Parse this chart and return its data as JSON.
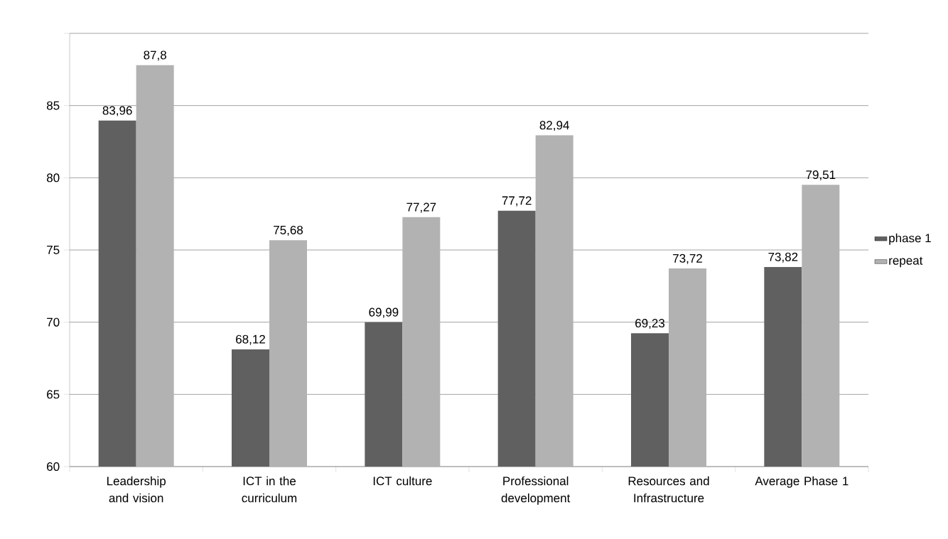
{
  "chart_data": {
    "type": "bar",
    "categories": [
      "Leadership and vision",
      "ICT in the curriculum",
      "ICT culture",
      "Professional development",
      "Resources and Infrastructure",
      "Average Phase 1"
    ],
    "series": [
      {
        "name": "phase 1",
        "color": "#606060",
        "values": [
          83.96,
          68.12,
          69.99,
          77.72,
          69.23,
          73.82
        ],
        "value_labels": [
          "83,96",
          "68,12",
          "69,99",
          "77,72",
          "69,23",
          "73,82"
        ]
      },
      {
        "name": "repeat",
        "color": "#b2b2b2",
        "values": [
          87.8,
          75.68,
          77.27,
          82.94,
          73.72,
          79.51
        ],
        "value_labels": [
          "87,8",
          "75,68",
          "77,27",
          "82,94",
          "73,72",
          "79,51"
        ]
      }
    ],
    "ylim": [
      60,
      90
    ],
    "yticks": [
      60,
      65,
      70,
      75,
      80,
      85,
      {
        "value": 90,
        "label": null
      }
    ],
    "grid": "y",
    "legend": "right"
  }
}
